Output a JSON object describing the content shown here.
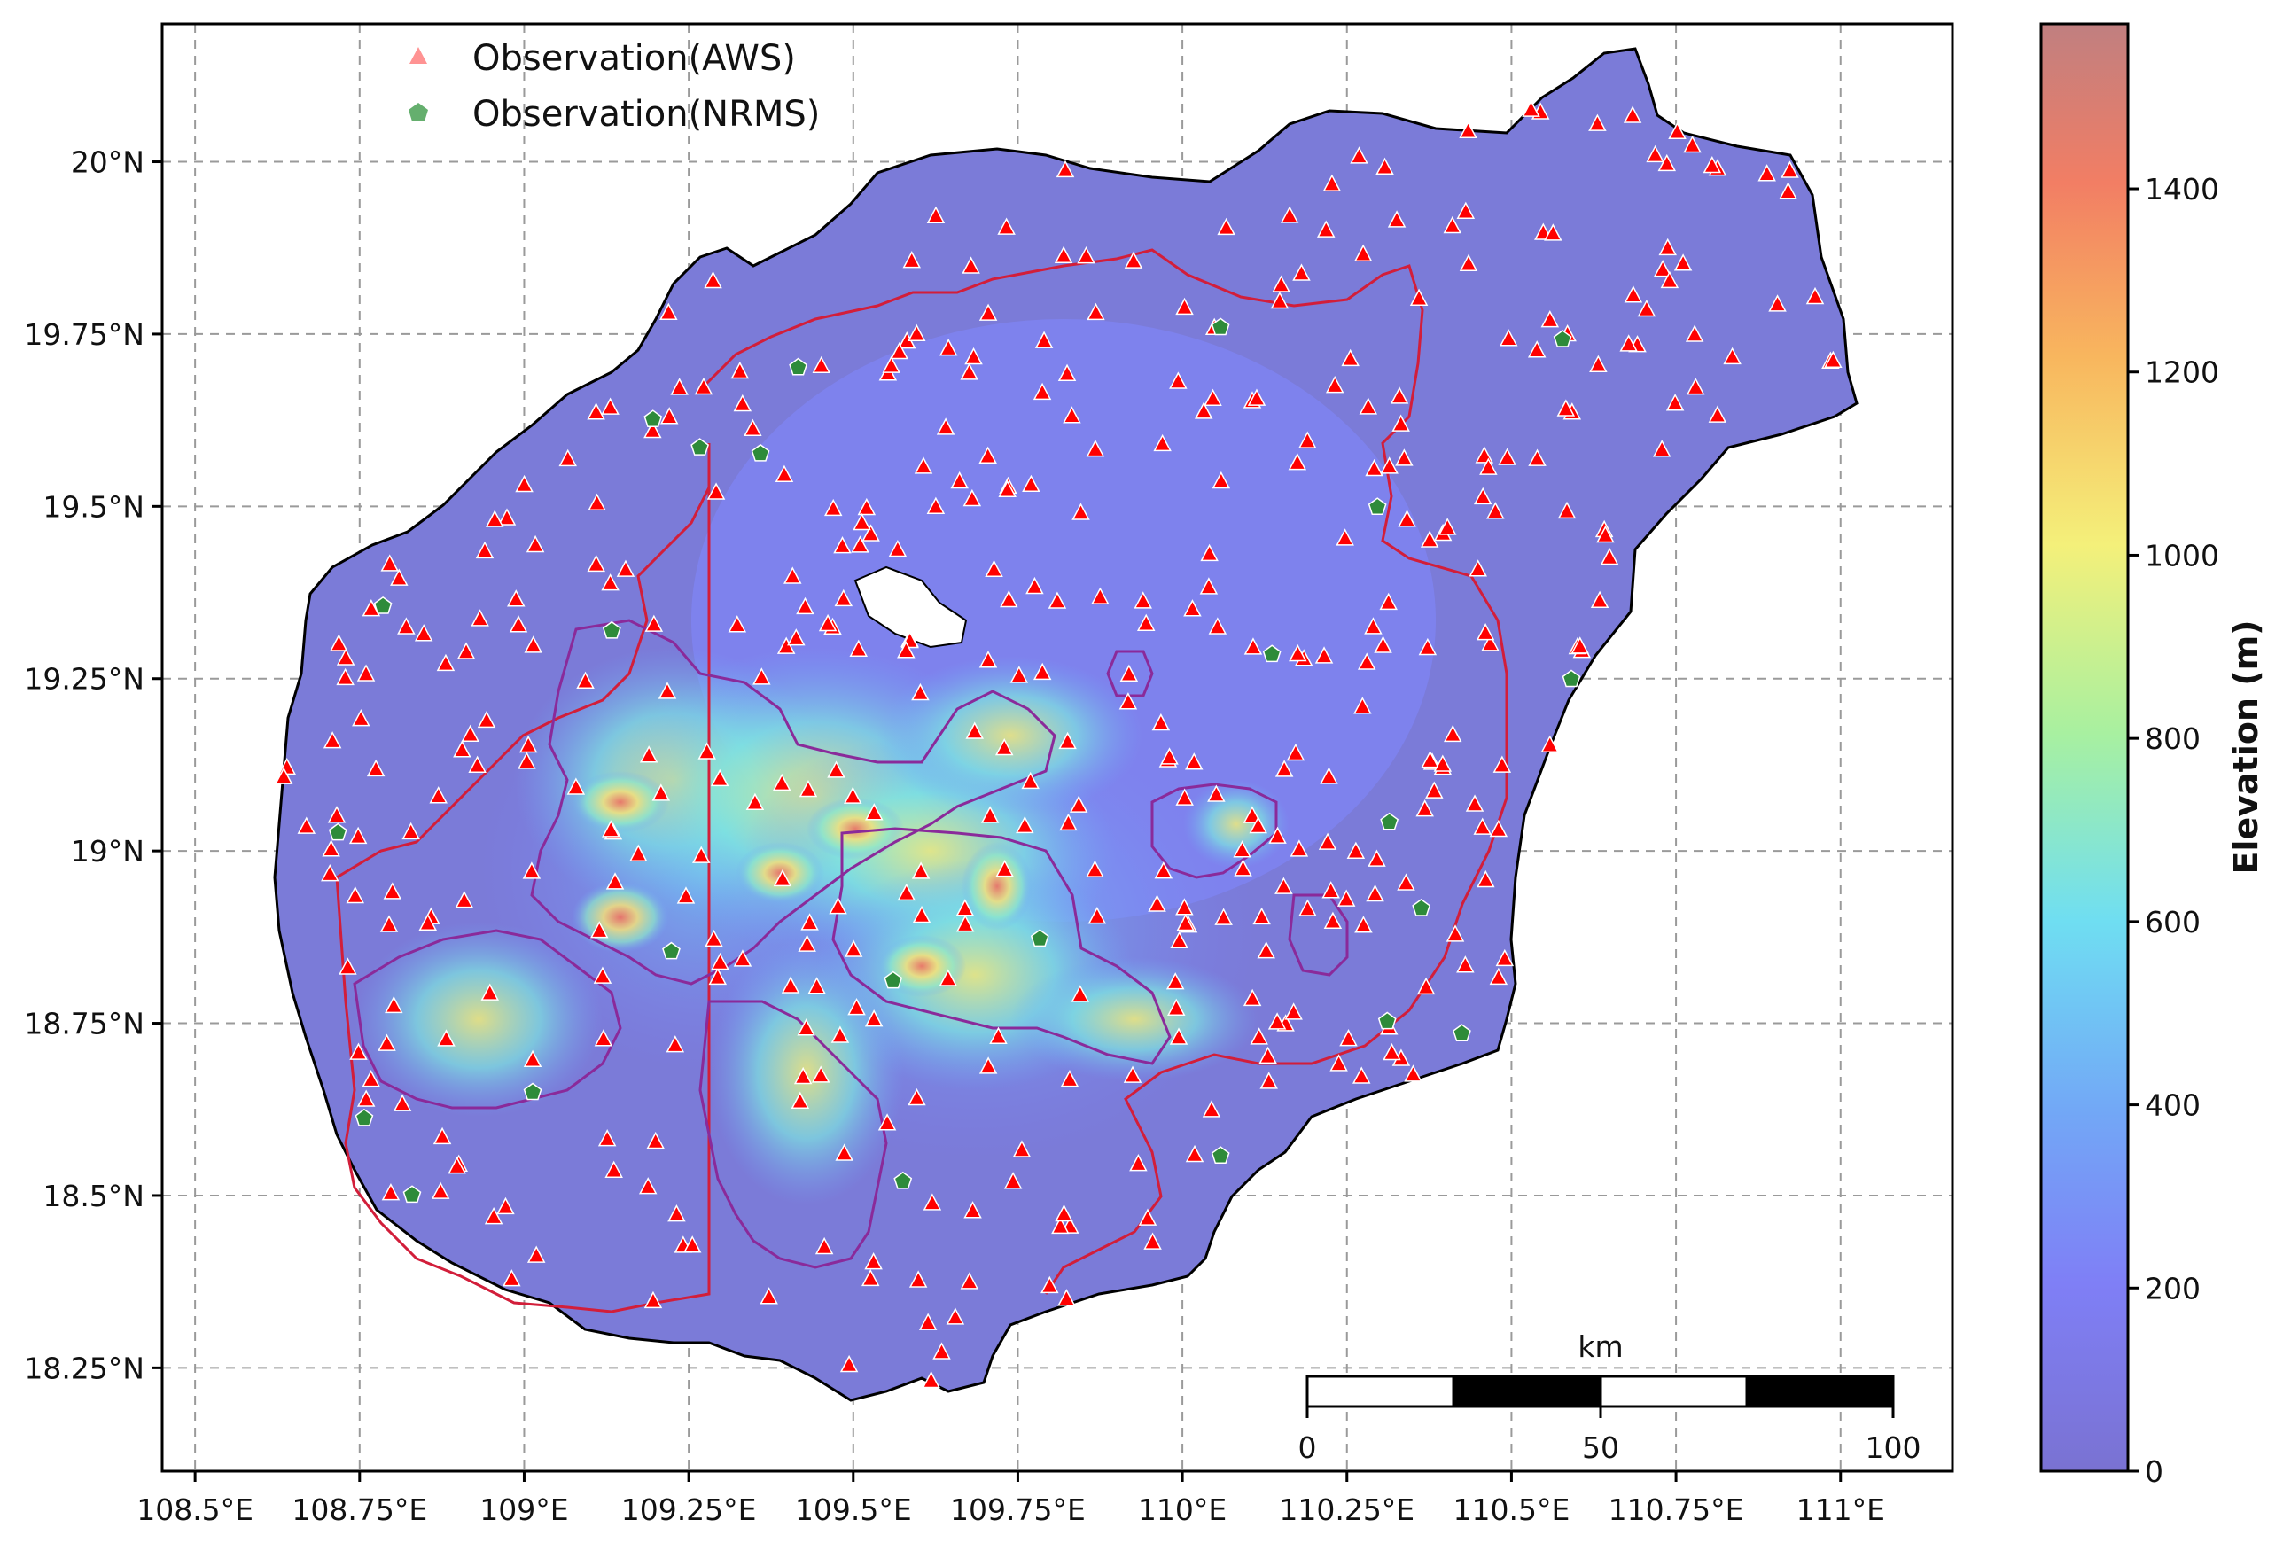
{
  "map": {
    "x_ticks": [
      "108.5°E",
      "108.75°E",
      "109°E",
      "109.25°E",
      "109.5°E",
      "109.75°E",
      "110°E",
      "110.25°E",
      "110.5°E",
      "110.75°E",
      "111°E"
    ],
    "y_ticks": [
      "20°N",
      "19.75°N",
      "19.5°N",
      "19.25°N",
      "19°N",
      "18.75°N",
      "18.5°N",
      "18.25°N"
    ],
    "x_range": [
      108.45,
      111.17
    ],
    "y_range": [
      18.1,
      20.2
    ],
    "grid": "dashed"
  },
  "legend": {
    "placement": "top-left",
    "items": [
      {
        "label": "Observation(AWS)",
        "marker": "triangle-icon",
        "color": "#ff0000"
      },
      {
        "label": "Observation(NRMS)",
        "marker": "pentagon-icon",
        "color": "#2e8b3a"
      }
    ]
  },
  "colorbar": {
    "label": "Elevation (m)",
    "ticks": [
      "0",
      "200",
      "400",
      "600",
      "800",
      "1000",
      "1200",
      "1400"
    ],
    "range": [
      0,
      1580
    ],
    "colors": [
      "#7a72d2",
      "#7f7ff6",
      "#72a8f6",
      "#6fdef2",
      "#a8f0a0",
      "#f4f07a",
      "#f8b65e",
      "#f27e64",
      "#c07f80"
    ]
  },
  "scalebar": {
    "unit": "km",
    "labels": [
      "0",
      "50",
      "100"
    ]
  },
  "colors": {
    "land": "#7b7bd8",
    "coast": "#000000",
    "boundary_red": "#d21e3a",
    "boundary_purple": "#8a2a9a",
    "aws": "#ff0000",
    "nrms": "#2e8b3a"
  }
}
